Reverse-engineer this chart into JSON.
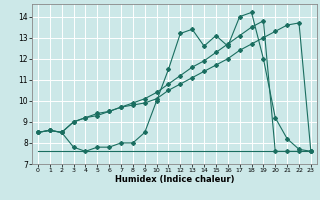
{
  "xlabel": "Humidex (Indice chaleur)",
  "bg_color": "#cce8e8",
  "grid_color": "#ffffff",
  "line_color": "#1a6e60",
  "xlim": [
    -0.5,
    23.5
  ],
  "ylim": [
    7.0,
    14.6
  ],
  "xticks": [
    0,
    1,
    2,
    3,
    4,
    5,
    6,
    7,
    8,
    9,
    10,
    11,
    12,
    13,
    14,
    15,
    16,
    17,
    18,
    19,
    20,
    21,
    22,
    23
  ],
  "yticks": [
    7,
    8,
    9,
    10,
    11,
    12,
    13,
    14
  ],
  "line1_y": [
    8.5,
    8.6,
    8.5,
    7.8,
    7.6,
    7.8,
    7.8,
    8.0,
    8.0,
    8.5,
    10.0,
    11.5,
    13.2,
    13.4,
    12.6,
    13.1,
    12.6,
    14.0,
    14.2,
    12.0,
    9.2,
    8.2,
    7.7,
    7.6
  ],
  "line2_y": [
    8.5,
    8.6,
    8.5,
    9.0,
    9.2,
    9.3,
    9.5,
    9.7,
    9.8,
    9.9,
    10.1,
    10.5,
    10.8,
    11.1,
    11.4,
    11.7,
    12.0,
    12.4,
    12.7,
    13.0,
    13.3,
    13.6,
    13.7,
    7.6
  ],
  "line3_y": [
    8.5,
    8.6,
    8.5,
    9.0,
    9.2,
    9.4,
    9.5,
    9.7,
    9.9,
    10.1,
    10.4,
    10.8,
    11.2,
    11.6,
    11.9,
    12.3,
    12.7,
    13.1,
    13.5,
    13.8,
    7.6,
    7.6,
    7.6,
    7.6
  ],
  "line4_y": [
    7.6,
    7.6,
    7.6,
    7.6,
    7.6,
    7.6,
    7.6,
    7.6,
    7.6,
    7.6,
    7.6,
    7.6,
    7.6,
    7.6,
    7.6,
    7.6,
    7.6,
    7.6,
    7.6,
    7.6,
    7.6,
    7.6,
    7.6,
    7.6
  ]
}
